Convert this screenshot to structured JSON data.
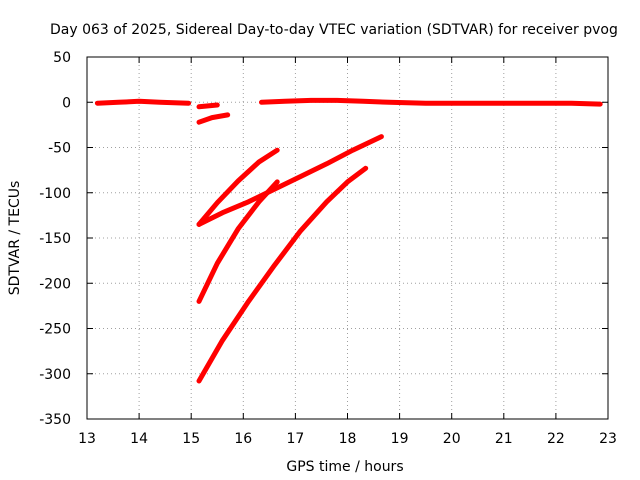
{
  "chart_data": {
    "type": "line",
    "title": "Day 063 of 2025, Sidereal Day-to-day VTEC variation (SDTVAR) for receiver pvog",
    "xlabel": "GPS time / hours",
    "ylabel": "SDTVAR / TECUs",
    "xlim": [
      13,
      23
    ],
    "ylim": [
      -350,
      50
    ],
    "xticks": [
      "13",
      "14",
      "15",
      "16",
      "17",
      "18",
      "19",
      "20",
      "21",
      "22",
      "23"
    ],
    "yticks": [
      "50",
      "0",
      "-50",
      "-100",
      "-150",
      "-200",
      "-250",
      "-300",
      "-350"
    ],
    "grid": true,
    "color": "#ff0000",
    "series": [
      {
        "x": [
          13.2,
          13.6,
          14.0,
          14.4,
          14.95
        ],
        "y": [
          -1,
          0,
          1,
          0,
          -1
        ]
      },
      {
        "x": [
          15.15,
          15.5
        ],
        "y": [
          -5,
          -3
        ]
      },
      {
        "x": [
          15.15,
          15.4,
          15.7
        ],
        "y": [
          -22,
          -17,
          -14
        ]
      },
      {
        "x": [
          16.35,
          16.8,
          17.3,
          17.8,
          18.3,
          18.8,
          19.5,
          20.3,
          21.0,
          21.7,
          22.3,
          22.85
        ],
        "y": [
          0,
          1,
          2,
          2,
          1,
          0,
          -1,
          -1,
          -1,
          -1,
          -1,
          -2
        ]
      },
      {
        "x": [
          15.15,
          15.5,
          15.9,
          16.3,
          16.65
        ],
        "y": [
          -135,
          -111,
          -87,
          -66,
          -53
        ]
      },
      {
        "x": [
          15.15,
          15.6,
          16.1,
          16.6,
          17.1,
          17.6,
          18.1,
          18.65
        ],
        "y": [
          -135,
          -122,
          -110,
          -96,
          -82,
          -68,
          -53,
          -38
        ]
      },
      {
        "x": [
          15.15,
          15.5,
          15.9,
          16.3,
          16.65
        ],
        "y": [
          -220,
          -178,
          -140,
          -110,
          -88
        ]
      },
      {
        "x": [
          15.15,
          15.6,
          16.1,
          16.6,
          17.1,
          17.6,
          18.0,
          18.35
        ],
        "y": [
          -308,
          -263,
          -220,
          -180,
          -142,
          -110,
          -88,
          -73
        ]
      }
    ]
  }
}
